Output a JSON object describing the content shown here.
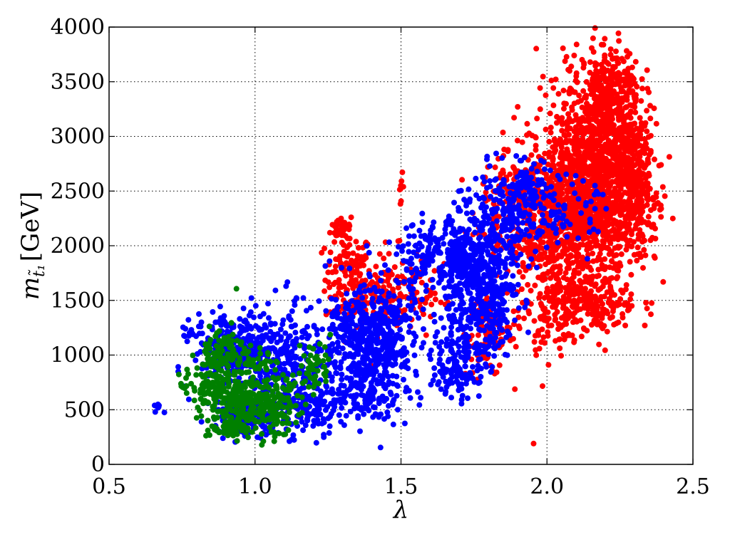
{
  "chart_data": {
    "type": "scatter",
    "title": "",
    "xlabel": "λ",
    "ylabel_main": "m",
    "ylabel_sub": "t̃₁",
    "ylabel_unit": "[GeV]",
    "xlim": [
      0.5,
      2.5
    ],
    "ylim": [
      0,
      4000
    ],
    "xticks": [
      "0.5",
      "1.0",
      "1.5",
      "2.0",
      "2.5"
    ],
    "yticks": [
      "0",
      "500",
      "1000",
      "1500",
      "2000",
      "2500",
      "3000",
      "3500",
      "4000"
    ],
    "grid": true,
    "legend": "none",
    "series": [
      {
        "color": "#ff0000",
        "clusters": [
          {
            "x": 1.32,
            "y": 1700,
            "sx": 0.04,
            "sy": 220,
            "n": 140
          },
          {
            "x": 1.3,
            "y": 2170,
            "sx": 0.02,
            "sy": 60,
            "n": 30
          },
          {
            "x": 1.45,
            "y": 1580,
            "sx": 0.05,
            "sy": 200,
            "n": 110
          },
          {
            "x": 1.5,
            "y": 2540,
            "sx": 0.005,
            "sy": 60,
            "n": 8
          },
          {
            "x": 1.8,
            "y": 1200,
            "sx": 0.04,
            "sy": 200,
            "n": 90
          },
          {
            "x": 1.88,
            "y": 2350,
            "sx": 0.06,
            "sy": 250,
            "n": 120
          },
          {
            "x": 2.0,
            "y": 2000,
            "sx": 0.08,
            "sy": 450,
            "n": 350
          },
          {
            "x": 2.12,
            "y": 2500,
            "sx": 0.09,
            "sy": 420,
            "n": 900
          },
          {
            "x": 2.2,
            "y": 2750,
            "sx": 0.07,
            "sy": 500,
            "n": 700
          },
          {
            "x": 2.22,
            "y": 3450,
            "sx": 0.05,
            "sy": 180,
            "n": 180
          },
          {
            "x": 2.15,
            "y": 1450,
            "sx": 0.08,
            "sy": 130,
            "n": 200
          },
          {
            "x": 2.3,
            "y": 2600,
            "sx": 0.04,
            "sy": 350,
            "n": 220
          },
          {
            "x": 1.98,
            "y": 1200,
            "sx": 0.02,
            "sy": 80,
            "n": 20
          },
          {
            "x": 1.57,
            "y": 1550,
            "sx": 0.04,
            "sy": 150,
            "n": 50
          }
        ]
      },
      {
        "color": "#0000ff",
        "clusters": [
          {
            "x": 0.93,
            "y": 1050,
            "sx": 0.07,
            "sy": 170,
            "n": 260
          },
          {
            "x": 1.1,
            "y": 900,
            "sx": 0.06,
            "sy": 280,
            "n": 240
          },
          {
            "x": 0.97,
            "y": 450,
            "sx": 0.06,
            "sy": 90,
            "n": 160
          },
          {
            "x": 1.2,
            "y": 550,
            "sx": 0.05,
            "sy": 120,
            "n": 120
          },
          {
            "x": 1.33,
            "y": 1100,
            "sx": 0.06,
            "sy": 250,
            "n": 260
          },
          {
            "x": 1.45,
            "y": 1150,
            "sx": 0.06,
            "sy": 300,
            "n": 300
          },
          {
            "x": 1.38,
            "y": 650,
            "sx": 0.05,
            "sy": 150,
            "n": 100
          },
          {
            "x": 1.58,
            "y": 1900,
            "sx": 0.04,
            "sy": 150,
            "n": 100
          },
          {
            "x": 1.72,
            "y": 1800,
            "sx": 0.05,
            "sy": 250,
            "n": 350
          },
          {
            "x": 1.7,
            "y": 950,
            "sx": 0.05,
            "sy": 180,
            "n": 150
          },
          {
            "x": 1.85,
            "y": 2200,
            "sx": 0.05,
            "sy": 250,
            "n": 200
          },
          {
            "x": 1.8,
            "y": 1500,
            "sx": 0.05,
            "sy": 250,
            "n": 200
          },
          {
            "x": 1.95,
            "y": 2500,
            "sx": 0.03,
            "sy": 150,
            "n": 80
          },
          {
            "x": 2.05,
            "y": 2300,
            "sx": 0.06,
            "sy": 150,
            "n": 80
          },
          {
            "x": 0.67,
            "y": 520,
            "sx": 0.01,
            "sy": 25,
            "n": 8
          },
          {
            "x": 0.78,
            "y": 1230,
            "sx": 0.02,
            "sy": 40,
            "n": 10
          }
        ]
      },
      {
        "color": "#008000",
        "clusters": [
          {
            "x": 0.86,
            "y": 750,
            "sx": 0.04,
            "sy": 200,
            "n": 180
          },
          {
            "x": 0.95,
            "y": 550,
            "sx": 0.05,
            "sy": 150,
            "n": 160
          },
          {
            "x": 1.05,
            "y": 550,
            "sx": 0.05,
            "sy": 130,
            "n": 140
          },
          {
            "x": 0.9,
            "y": 1050,
            "sx": 0.03,
            "sy": 80,
            "n": 50
          },
          {
            "x": 1.02,
            "y": 950,
            "sx": 0.03,
            "sy": 60,
            "n": 30
          },
          {
            "x": 1.2,
            "y": 900,
            "sx": 0.03,
            "sy": 120,
            "n": 50
          },
          {
            "x": 0.76,
            "y": 715,
            "sx": 0.01,
            "sy": 15,
            "n": 6
          },
          {
            "x": 0.92,
            "y": 330,
            "sx": 0.03,
            "sy": 30,
            "n": 40
          }
        ]
      }
    ]
  }
}
